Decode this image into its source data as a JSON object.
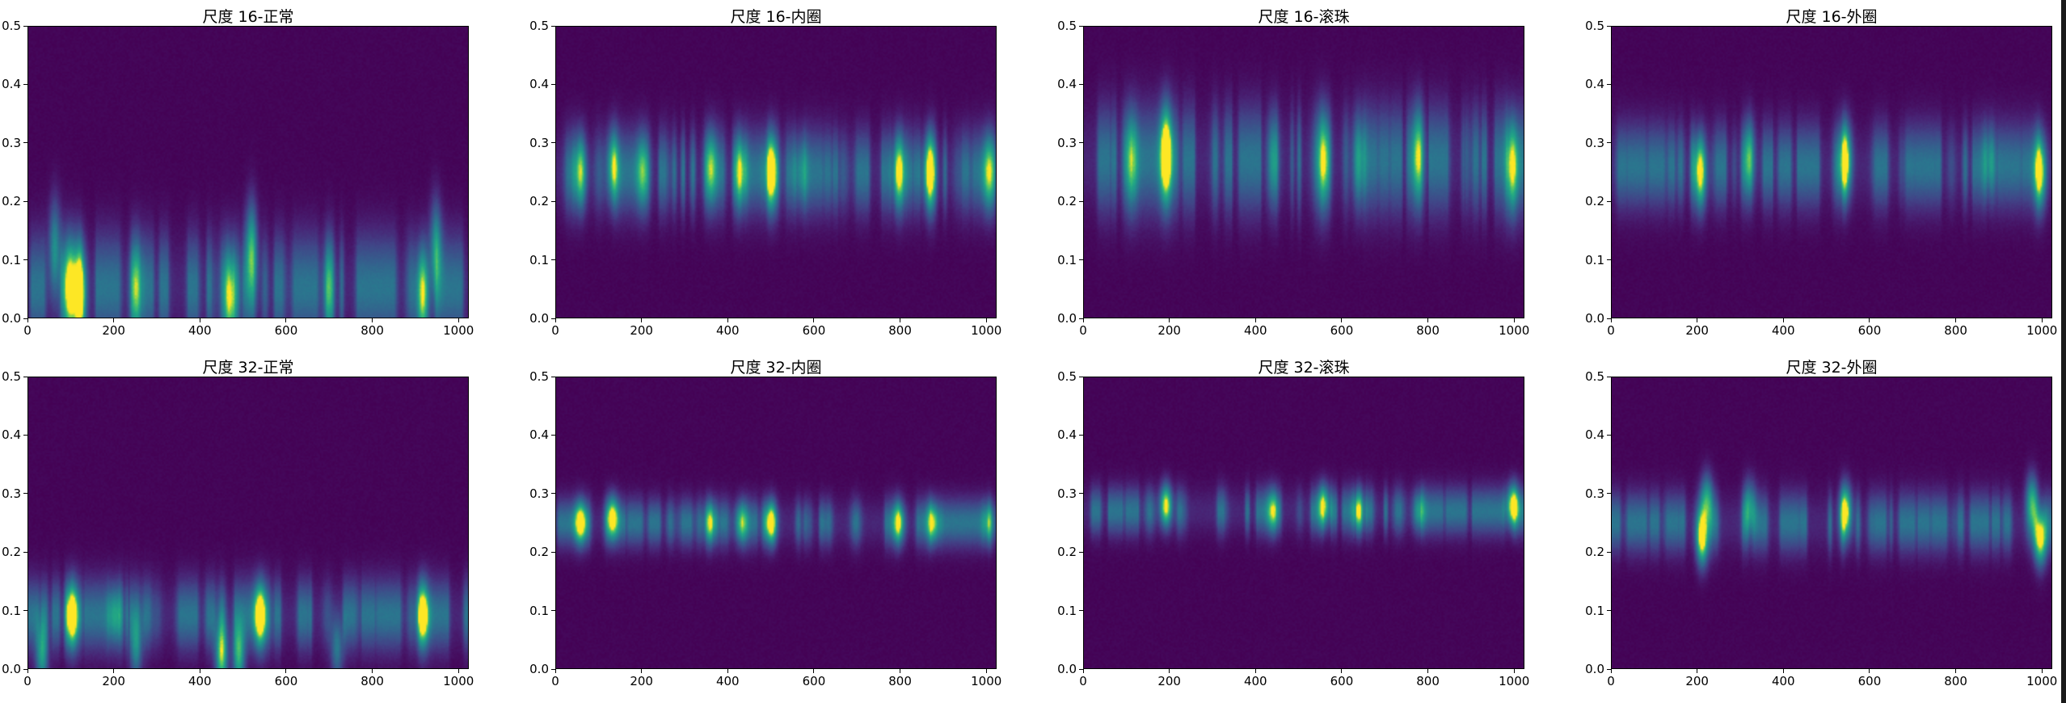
{
  "colormap": "viridis",
  "colors": {
    "background": "#ffffff",
    "axis": "#000000",
    "scrollbar": "#1a1a1a"
  },
  "chart_data": [
    {
      "type": "heatmap",
      "title": "尺度 16-正常",
      "xlim": [
        0,
        1024
      ],
      "ylim": [
        0,
        0.5
      ],
      "xticks": [
        "0",
        "200",
        "400",
        "600",
        "800",
        "1000"
      ],
      "yticks": [
        "0.0",
        "0.1",
        "0.2",
        "0.3",
        "0.4",
        "0.5"
      ],
      "band": {
        "center": 0.05,
        "spread": 0.09
      },
      "hotspots": [
        {
          "x": 120,
          "y": 0.04,
          "intensity": 1.0
        },
        {
          "x": 95,
          "y": 0.05,
          "intensity": 0.75
        },
        {
          "x": 60,
          "y": 0.12,
          "intensity": 0.55
        },
        {
          "x": 520,
          "y": 0.12,
          "intensity": 0.6
        },
        {
          "x": 470,
          "y": 0.03,
          "intensity": 0.65
        },
        {
          "x": 920,
          "y": 0.04,
          "intensity": 0.9
        },
        {
          "x": 950,
          "y": 0.12,
          "intensity": 0.55
        },
        {
          "x": 250,
          "y": 0.05,
          "intensity": 0.5
        },
        {
          "x": 700,
          "y": 0.05,
          "intensity": 0.4
        }
      ]
    },
    {
      "type": "heatmap",
      "title": "尺度 16-内圈",
      "xlim": [
        0,
        1024
      ],
      "ylim": [
        0,
        0.5
      ],
      "xticks": [
        "0",
        "200",
        "400",
        "600",
        "800",
        "1000"
      ],
      "yticks": [
        "0.0",
        "0.1",
        "0.2",
        "0.3",
        "0.4",
        "0.5"
      ],
      "band": {
        "center": 0.25,
        "spread": 0.07
      },
      "hotspots": [
        {
          "x": 55,
          "y": 0.25,
          "intensity": 0.85
        },
        {
          "x": 130,
          "y": 0.26,
          "intensity": 0.7
        },
        {
          "x": 200,
          "y": 0.25,
          "intensity": 0.45
        },
        {
          "x": 360,
          "y": 0.26,
          "intensity": 0.5
        },
        {
          "x": 430,
          "y": 0.25,
          "intensity": 0.65
        },
        {
          "x": 500,
          "y": 0.25,
          "intensity": 0.9
        },
        {
          "x": 570,
          "y": 0.25,
          "intensity": 0.45
        },
        {
          "x": 800,
          "y": 0.25,
          "intensity": 0.65
        },
        {
          "x": 870,
          "y": 0.25,
          "intensity": 0.9
        },
        {
          "x": 1010,
          "y": 0.25,
          "intensity": 0.55
        }
      ]
    },
    {
      "type": "heatmap",
      "title": "尺度 16-滚珠",
      "xlim": [
        0,
        1024
      ],
      "ylim": [
        0,
        0.5
      ],
      "xticks": [
        "0",
        "200",
        "400",
        "600",
        "800",
        "1000"
      ],
      "yticks": [
        "0.0",
        "0.1",
        "0.2",
        "0.3",
        "0.4",
        "0.5"
      ],
      "band": {
        "center": 0.27,
        "spread": 0.09
      },
      "hotspots": [
        {
          "x": 190,
          "y": 0.28,
          "intensity": 1.0
        },
        {
          "x": 110,
          "y": 0.27,
          "intensity": 0.5
        },
        {
          "x": 440,
          "y": 0.27,
          "intensity": 0.55
        },
        {
          "x": 560,
          "y": 0.27,
          "intensity": 0.7
        },
        {
          "x": 640,
          "y": 0.27,
          "intensity": 0.6
        },
        {
          "x": 780,
          "y": 0.28,
          "intensity": 0.55
        },
        {
          "x": 1000,
          "y": 0.26,
          "intensity": 0.95
        }
      ]
    },
    {
      "type": "heatmap",
      "title": "尺度 16-外圈",
      "xlim": [
        0,
        1024
      ],
      "ylim": [
        0,
        0.5
      ],
      "xticks": [
        "0",
        "200",
        "400",
        "600",
        "800",
        "1000"
      ],
      "yticks": [
        "0.0",
        "0.1",
        "0.2",
        "0.3",
        "0.4",
        "0.5"
      ],
      "band": {
        "center": 0.26,
        "spread": 0.07
      },
      "hotspots": [
        {
          "x": 205,
          "y": 0.25,
          "intensity": 1.0
        },
        {
          "x": 320,
          "y": 0.28,
          "intensity": 0.45
        },
        {
          "x": 545,
          "y": 0.27,
          "intensity": 0.95
        },
        {
          "x": 880,
          "y": 0.27,
          "intensity": 0.4
        },
        {
          "x": 1000,
          "y": 0.25,
          "intensity": 0.9
        }
      ]
    },
    {
      "type": "heatmap",
      "title": "尺度 32-正常",
      "xlim": [
        0,
        1024
      ],
      "ylim": [
        0,
        0.5
      ],
      "xticks": [
        "0",
        "200",
        "400",
        "600",
        "800",
        "1000"
      ],
      "yticks": [
        "0.0",
        "0.1",
        "0.2",
        "0.3",
        "0.4",
        "0.5"
      ],
      "band": {
        "center": 0.09,
        "spread": 0.06
      },
      "hotspots": [
        {
          "x": 100,
          "y": 0.09,
          "intensity": 0.95
        },
        {
          "x": 200,
          "y": 0.09,
          "intensity": 0.6
        },
        {
          "x": 540,
          "y": 0.09,
          "intensity": 0.9
        },
        {
          "x": 920,
          "y": 0.09,
          "intensity": 0.9
        },
        {
          "x": 30,
          "y": 0.02,
          "intensity": 0.6
        },
        {
          "x": 450,
          "y": 0.02,
          "intensity": 0.85
        },
        {
          "x": 490,
          "y": 0.02,
          "intensity": 0.7
        },
        {
          "x": 250,
          "y": 0.03,
          "intensity": 0.45
        },
        {
          "x": 720,
          "y": 0.03,
          "intensity": 0.45
        }
      ]
    },
    {
      "type": "heatmap",
      "title": "尺度 32-内圈",
      "xlim": [
        0,
        1024
      ],
      "ylim": [
        0,
        0.5
      ],
      "xticks": [
        "0",
        "200",
        "400",
        "600",
        "800",
        "1000"
      ],
      "yticks": [
        "0.0",
        "0.1",
        "0.2",
        "0.3",
        "0.4",
        "0.5"
      ],
      "band": {
        "center": 0.25,
        "spread": 0.04
      },
      "hotspots": [
        {
          "x": 55,
          "y": 0.25,
          "intensity": 0.8
        },
        {
          "x": 130,
          "y": 0.26,
          "intensity": 0.75
        },
        {
          "x": 360,
          "y": 0.25,
          "intensity": 0.6
        },
        {
          "x": 430,
          "y": 0.25,
          "intensity": 0.7
        },
        {
          "x": 500,
          "y": 0.25,
          "intensity": 0.9
        },
        {
          "x": 800,
          "y": 0.25,
          "intensity": 0.7
        },
        {
          "x": 880,
          "y": 0.25,
          "intensity": 0.8
        },
        {
          "x": 1010,
          "y": 0.25,
          "intensity": 0.6
        }
      ]
    },
    {
      "type": "heatmap",
      "title": "尺度 32-滚珠",
      "xlim": [
        0,
        1024
      ],
      "ylim": [
        0,
        0.5
      ],
      "xticks": [
        "0",
        "200",
        "400",
        "600",
        "800",
        "1000"
      ],
      "yticks": [
        "0.0",
        "0.1",
        "0.2",
        "0.3",
        "0.4",
        "0.5"
      ],
      "band": {
        "center": 0.27,
        "spread": 0.04
      },
      "hotspots": [
        {
          "x": 190,
          "y": 0.28,
          "intensity": 0.95
        },
        {
          "x": 440,
          "y": 0.27,
          "intensity": 0.55
        },
        {
          "x": 560,
          "y": 0.28,
          "intensity": 0.75
        },
        {
          "x": 640,
          "y": 0.27,
          "intensity": 0.6
        },
        {
          "x": 780,
          "y": 0.27,
          "intensity": 0.55
        },
        {
          "x": 1000,
          "y": 0.28,
          "intensity": 0.95
        }
      ]
    },
    {
      "type": "heatmap",
      "title": "尺度 32-外圈",
      "xlim": [
        0,
        1024
      ],
      "ylim": [
        0,
        0.5
      ],
      "xticks": [
        "0",
        "200",
        "400",
        "600",
        "800",
        "1000"
      ],
      "yticks": [
        "0.0",
        "0.1",
        "0.2",
        "0.3",
        "0.4",
        "0.5"
      ],
      "band": {
        "center": 0.25,
        "spread": 0.05
      },
      "hotspots": [
        {
          "x": 210,
          "y": 0.22,
          "intensity": 0.9
        },
        {
          "x": 220,
          "y": 0.29,
          "intensity": 0.65
        },
        {
          "x": 320,
          "y": 0.28,
          "intensity": 0.5
        },
        {
          "x": 545,
          "y": 0.27,
          "intensity": 0.95
        },
        {
          "x": 1000,
          "y": 0.22,
          "intensity": 0.9
        },
        {
          "x": 980,
          "y": 0.29,
          "intensity": 0.6
        }
      ]
    }
  ]
}
